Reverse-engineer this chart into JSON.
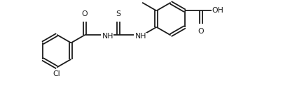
{
  "bg_color": "#ffffff",
  "line_color": "#1c1c1c",
  "line_width": 1.3,
  "font_size": 7.8,
  "figsize": [
    4.04,
    1.52
  ],
  "dpi": 100,
  "xlim": [
    -0.3,
    10.4
  ],
  "ylim": [
    0.0,
    3.95
  ]
}
